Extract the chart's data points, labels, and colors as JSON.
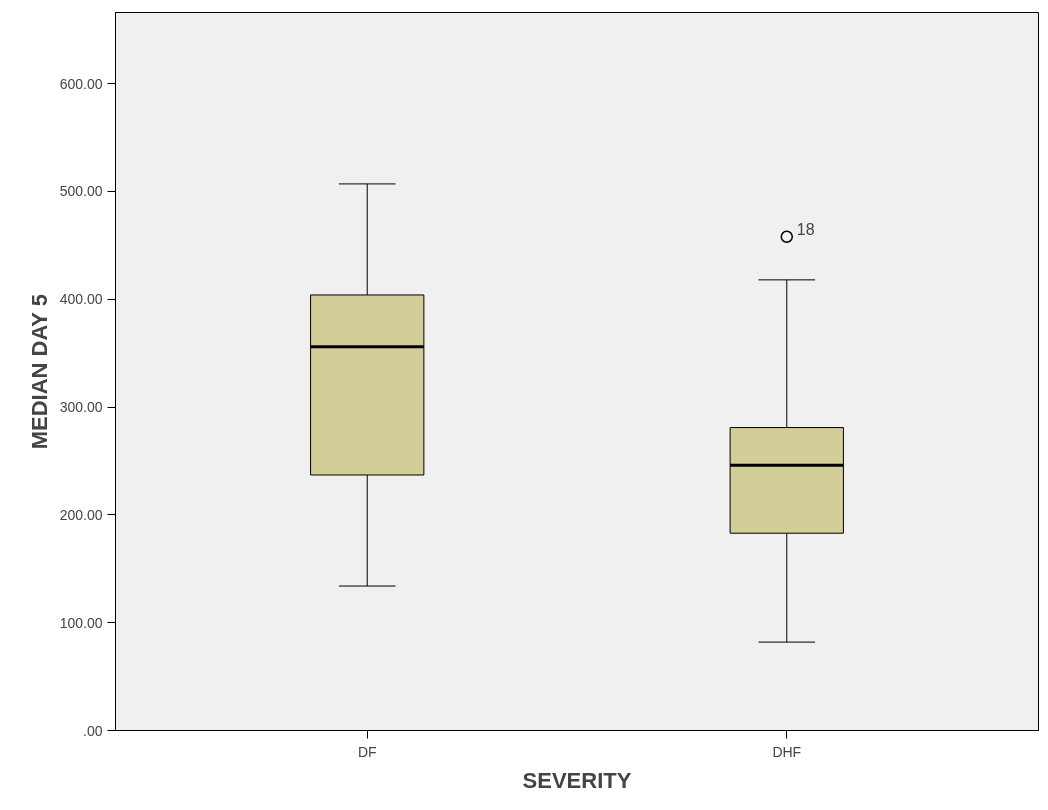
{
  "chart_data": {
    "type": "box",
    "xlabel": "SEVERITY",
    "ylabel": "MEDIAN DAY 5",
    "categories": [
      "DF",
      "DHF"
    ],
    "series": [
      {
        "color": "#d3ce98",
        "boxes": [
          {
            "low": 134,
            "q1": 237,
            "median": 356,
            "q3": 404,
            "high": 507
          },
          {
            "low": 82,
            "q1": 183,
            "median": 246,
            "q3": 281,
            "high": 418,
            "outliers": [
              458
            ]
          }
        ]
      }
    ],
    "ylim": [
      0,
      666
    ],
    "yticks": [
      {
        "value": 0,
        "label": ".00"
      },
      {
        "value": 100,
        "label": "100.00"
      },
      {
        "value": 200,
        "label": "200.00"
      },
      {
        "value": 300,
        "label": "300.00"
      },
      {
        "value": 400,
        "label": "400.00"
      },
      {
        "value": 500,
        "label": "500.00"
      },
      {
        "value": 600,
        "label": "600.00"
      }
    ],
    "annotations": [
      "18"
    ],
    "grid": false
  }
}
